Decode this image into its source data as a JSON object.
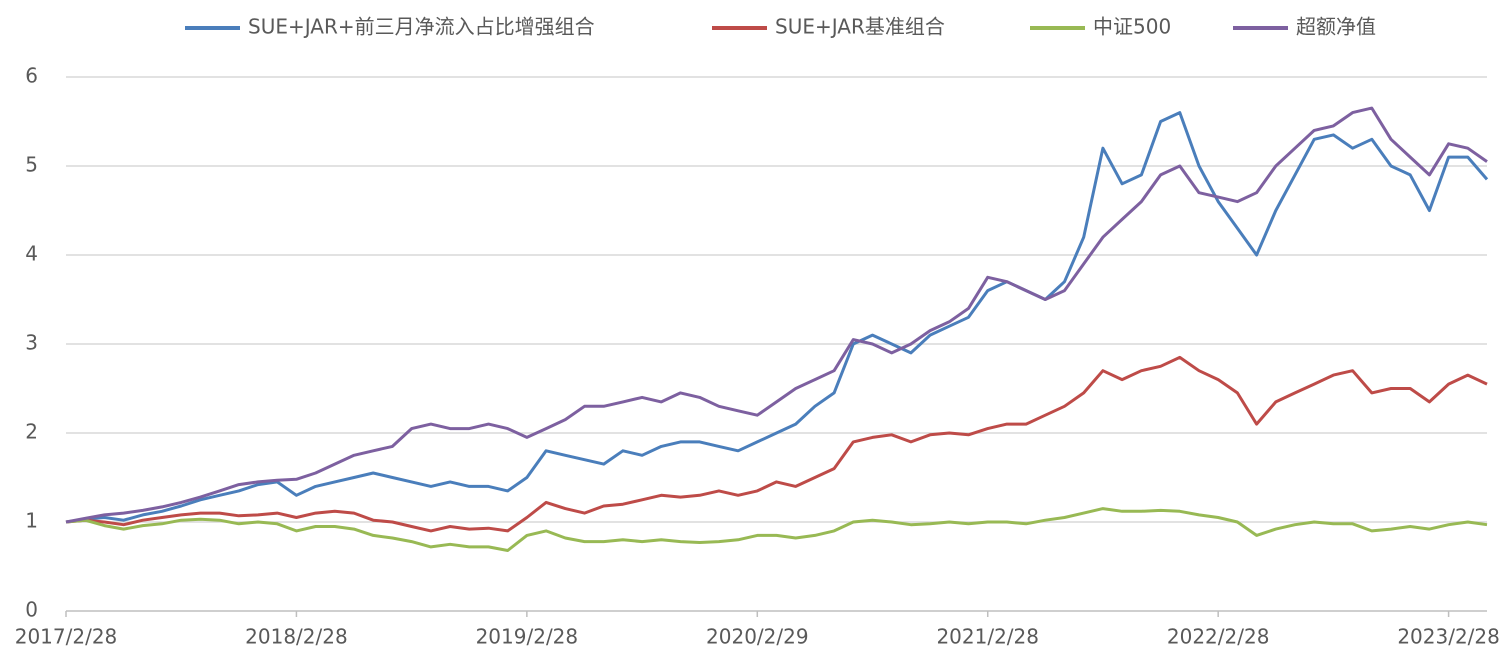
{
  "chart_data": {
    "type": "line",
    "categories": [
      "2017/2/28",
      null,
      null,
      null,
      null,
      null,
      null,
      null,
      null,
      null,
      null,
      null,
      "2018/2/28",
      null,
      null,
      null,
      null,
      null,
      null,
      null,
      null,
      null,
      null,
      null,
      "2019/2/28",
      null,
      null,
      null,
      null,
      null,
      null,
      null,
      null,
      null,
      null,
      null,
      "2020/2/29",
      null,
      null,
      null,
      null,
      null,
      null,
      null,
      null,
      null,
      null,
      null,
      "2021/2/28",
      null,
      null,
      null,
      null,
      null,
      null,
      null,
      null,
      null,
      null,
      null,
      "2022/2/28",
      null,
      null,
      null,
      null,
      null,
      null,
      null,
      null,
      null,
      null,
      null,
      "2023/2/28",
      null,
      null
    ],
    "series": [
      {
        "name": "SUE+JAR+前三月净流入占比增强组合",
        "color": "#4a7ebb",
        "values": [
          1.0,
          1.03,
          1.05,
          1.02,
          1.08,
          1.12,
          1.18,
          1.25,
          1.3,
          1.35,
          1.42,
          1.45,
          1.3,
          1.4,
          1.45,
          1.5,
          1.55,
          1.5,
          1.45,
          1.4,
          1.45,
          1.4,
          1.4,
          1.35,
          1.5,
          1.8,
          1.75,
          1.7,
          1.65,
          1.8,
          1.75,
          1.85,
          1.9,
          1.9,
          1.85,
          1.8,
          1.9,
          2.0,
          2.1,
          2.3,
          2.45,
          3.0,
          3.1,
          3.0,
          2.9,
          3.1,
          3.2,
          3.3,
          3.6,
          3.7,
          3.6,
          3.5,
          3.7,
          4.2,
          5.2,
          4.8,
          4.9,
          5.5,
          5.6,
          5.0,
          4.6,
          4.3,
          4.0,
          4.5,
          4.9,
          5.3,
          5.35,
          5.2,
          5.3,
          5.0,
          4.9,
          4.5,
          5.1,
          5.1,
          4.85
        ]
      },
      {
        "name": "SUE+JAR基准组合",
        "color": "#be4b48",
        "values": [
          1.0,
          1.02,
          1.0,
          0.97,
          1.02,
          1.05,
          1.08,
          1.1,
          1.1,
          1.07,
          1.08,
          1.1,
          1.05,
          1.1,
          1.12,
          1.1,
          1.02,
          1.0,
          0.95,
          0.9,
          0.95,
          0.92,
          0.93,
          0.9,
          1.05,
          1.22,
          1.15,
          1.1,
          1.18,
          1.2,
          1.25,
          1.3,
          1.28,
          1.3,
          1.35,
          1.3,
          1.35,
          1.45,
          1.4,
          1.5,
          1.6,
          1.9,
          1.95,
          1.98,
          1.9,
          1.98,
          2.0,
          1.98,
          2.05,
          2.1,
          2.1,
          2.2,
          2.3,
          2.45,
          2.7,
          2.6,
          2.7,
          2.75,
          2.85,
          2.7,
          2.6,
          2.45,
          2.1,
          2.35,
          2.45,
          2.55,
          2.65,
          2.7,
          2.45,
          2.5,
          2.5,
          2.35,
          2.55,
          2.65,
          2.55
        ]
      },
      {
        "name": "中证500",
        "color": "#98b954",
        "values": [
          1.0,
          1.02,
          0.96,
          0.92,
          0.96,
          0.98,
          1.02,
          1.03,
          1.02,
          0.98,
          1.0,
          0.98,
          0.9,
          0.95,
          0.95,
          0.92,
          0.85,
          0.82,
          0.78,
          0.72,
          0.75,
          0.72,
          0.72,
          0.68,
          0.85,
          0.9,
          0.82,
          0.78,
          0.78,
          0.8,
          0.78,
          0.8,
          0.78,
          0.77,
          0.78,
          0.8,
          0.85,
          0.85,
          0.82,
          0.85,
          0.9,
          1.0,
          1.02,
          1.0,
          0.97,
          0.98,
          1.0,
          0.98,
          1.0,
          1.0,
          0.98,
          1.02,
          1.05,
          1.1,
          1.15,
          1.12,
          1.12,
          1.13,
          1.12,
          1.08,
          1.05,
          1.0,
          0.85,
          0.92,
          0.97,
          1.0,
          0.98,
          0.98,
          0.9,
          0.92,
          0.95,
          0.92,
          0.97,
          1.0,
          0.97
        ]
      },
      {
        "name": "超额净值",
        "color": "#7d60a0",
        "values": [
          1.0,
          1.04,
          1.08,
          1.1,
          1.13,
          1.17,
          1.22,
          1.28,
          1.35,
          1.42,
          1.45,
          1.47,
          1.48,
          1.55,
          1.65,
          1.75,
          1.8,
          1.85,
          2.05,
          2.1,
          2.05,
          2.05,
          2.1,
          2.05,
          1.95,
          2.05,
          2.15,
          2.3,
          2.3,
          2.35,
          2.4,
          2.35,
          2.45,
          2.4,
          2.3,
          2.25,
          2.2,
          2.35,
          2.5,
          2.6,
          2.7,
          3.05,
          3.0,
          2.9,
          3.0,
          3.15,
          3.25,
          3.4,
          3.75,
          3.7,
          3.6,
          3.5,
          3.6,
          3.9,
          4.2,
          4.4,
          4.6,
          4.9,
          5.0,
          4.7,
          4.65,
          4.6,
          4.7,
          5.0,
          5.2,
          5.4,
          5.45,
          5.6,
          5.65,
          5.3,
          5.1,
          4.9,
          5.25,
          5.2,
          5.05
        ]
      }
    ],
    "ylim": [
      0,
      6
    ],
    "yticks": [
      0,
      1,
      2,
      3,
      4,
      5,
      6
    ],
    "grid": true,
    "legend": "top"
  }
}
